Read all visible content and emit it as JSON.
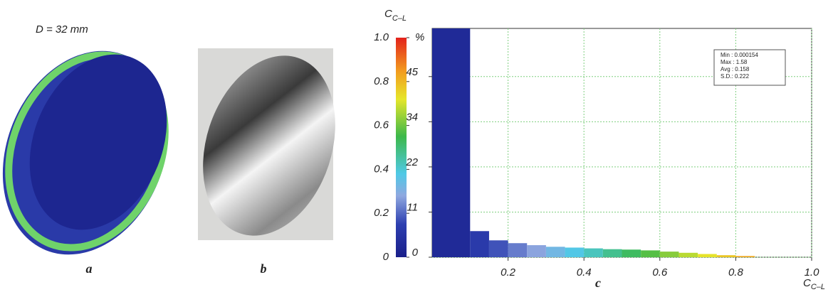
{
  "panel_a": {
    "caption": "D = 32 mm",
    "label": "a"
  },
  "panel_b": {
    "label": "b"
  },
  "colorbar": {
    "title": "C",
    "title_subscript": "C–L",
    "clim": [
      0,
      1
    ],
    "ticks": [
      0,
      0.2,
      0.4,
      0.6,
      0.8,
      {
        "value": 1,
        "label": "1.0"
      }
    ]
  },
  "chart_data": {
    "type": "histogram",
    "label": "c",
    "y_label": "%",
    "x_label": "C",
    "x_label_subscript": "C–L",
    "bins": [
      0,
      0.1,
      0.15,
      0.2,
      0.25,
      0.3,
      0.35,
      0.4,
      0.45,
      0.5,
      0.55,
      0.6,
      0.65,
      0.7,
      0.75,
      0.8,
      0.85
    ],
    "values": [
      57,
      6.5,
      4.2,
      3.5,
      3.0,
      2.6,
      2.4,
      2.2,
      2.0,
      1.9,
      1.7,
      1.4,
      1.1,
      0.8,
      0.5,
      0.3
    ],
    "xlim": [
      0,
      1
    ],
    "ylim": [
      0,
      57
    ],
    "xticks": [
      0.2,
      0.4,
      0.6,
      0.8,
      {
        "value": 1,
        "label": "1.0"
      }
    ],
    "yticks": [
      0,
      {
        "value": 11.25,
        "label": "11"
      },
      {
        "value": 22.5,
        "label": "22"
      },
      {
        "value": 33.75,
        "label": "34"
      },
      45
    ],
    "grid": true,
    "annotations": [
      "Min : 0.000154",
      "Max : 1.58",
      "Avg : 0.158",
      "S.D.: 0.222"
    ]
  }
}
